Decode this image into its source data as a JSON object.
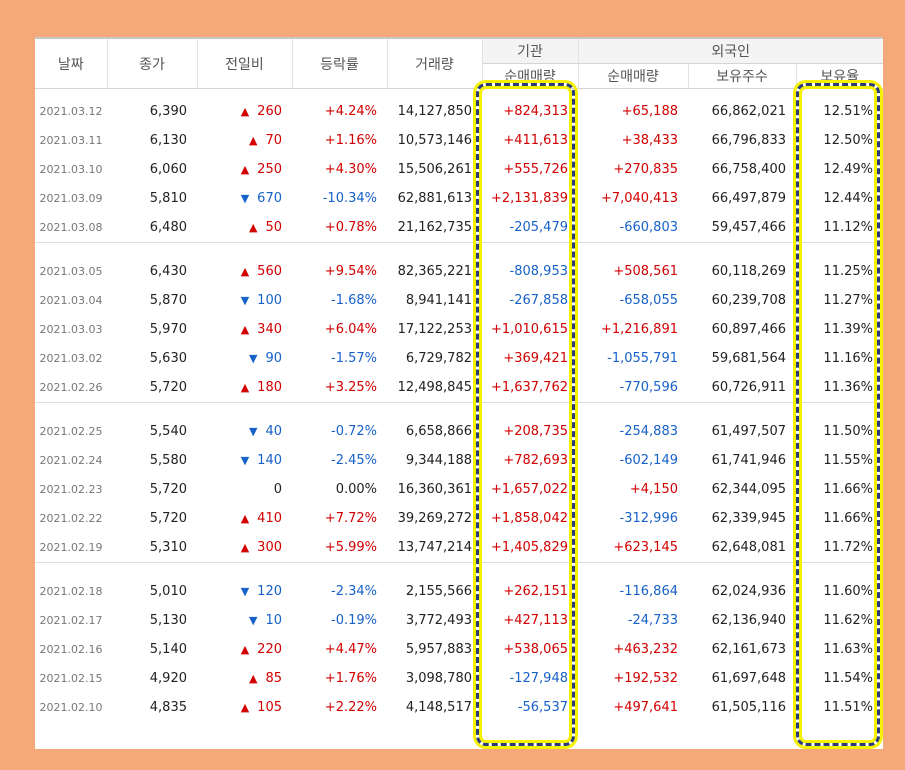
{
  "headers": {
    "date": "날짜",
    "close": "종가",
    "change": "전일비",
    "rate": "등락률",
    "volume": "거래량",
    "institution_group": "기관",
    "institution_net": "순매매량",
    "foreign_group": "외국인",
    "foreign_net": "순매매량",
    "foreign_holdings": "보유주수",
    "foreign_ratio": "보유율"
  },
  "groups": [
    {
      "rows": [
        {
          "date": "2021.03.12",
          "close": "6,390",
          "dir": "up",
          "arrow": "▲",
          "change": "260",
          "rate": "+4.24%",
          "volume": "14,127,850",
          "inst": "+824,313",
          "inst_dir": "up",
          "fnet": "+65,188",
          "fnet_dir": "up",
          "fhold": "66,862,021",
          "fratio": "12.51%"
        },
        {
          "date": "2021.03.11",
          "close": "6,130",
          "dir": "up",
          "arrow": "▲",
          "change": "70",
          "rate": "+1.16%",
          "volume": "10,573,146",
          "inst": "+411,613",
          "inst_dir": "up",
          "fnet": "+38,433",
          "fnet_dir": "up",
          "fhold": "66,796,833",
          "fratio": "12.50%"
        },
        {
          "date": "2021.03.10",
          "close": "6,060",
          "dir": "up",
          "arrow": "▲",
          "change": "250",
          "rate": "+4.30%",
          "volume": "15,506,261",
          "inst": "+555,726",
          "inst_dir": "up",
          "fnet": "+270,835",
          "fnet_dir": "up",
          "fhold": "66,758,400",
          "fratio": "12.49%"
        },
        {
          "date": "2021.03.09",
          "close": "5,810",
          "dir": "down",
          "arrow": "▼",
          "change": "670",
          "rate": "-10.34%",
          "volume": "62,881,613",
          "inst": "+2,131,839",
          "inst_dir": "up",
          "fnet": "+7,040,413",
          "fnet_dir": "up",
          "fhold": "66,497,879",
          "fratio": "12.44%"
        },
        {
          "date": "2021.03.08",
          "close": "6,480",
          "dir": "up",
          "arrow": "▲",
          "change": "50",
          "rate": "+0.78%",
          "volume": "21,162,735",
          "inst": "-205,479",
          "inst_dir": "down",
          "fnet": "-660,803",
          "fnet_dir": "down",
          "fhold": "59,457,466",
          "fratio": "11.12%"
        }
      ]
    },
    {
      "rows": [
        {
          "date": "2021.03.05",
          "close": "6,430",
          "dir": "up",
          "arrow": "▲",
          "change": "560",
          "rate": "+9.54%",
          "volume": "82,365,221",
          "inst": "-808,953",
          "inst_dir": "down",
          "fnet": "+508,561",
          "fnet_dir": "up",
          "fhold": "60,118,269",
          "fratio": "11.25%"
        },
        {
          "date": "2021.03.04",
          "close": "5,870",
          "dir": "down",
          "arrow": "▼",
          "change": "100",
          "rate": "-1.68%",
          "volume": "8,941,141",
          "inst": "-267,858",
          "inst_dir": "down",
          "fnet": "-658,055",
          "fnet_dir": "down",
          "fhold": "60,239,708",
          "fratio": "11.27%"
        },
        {
          "date": "2021.03.03",
          "close": "5,970",
          "dir": "up",
          "arrow": "▲",
          "change": "340",
          "rate": "+6.04%",
          "volume": "17,122,253",
          "inst": "+1,010,615",
          "inst_dir": "up",
          "fnet": "+1,216,891",
          "fnet_dir": "up",
          "fhold": "60,897,466",
          "fratio": "11.39%"
        },
        {
          "date": "2021.03.02",
          "close": "5,630",
          "dir": "down",
          "arrow": "▼",
          "change": "90",
          "rate": "-1.57%",
          "volume": "6,729,782",
          "inst": "+369,421",
          "inst_dir": "up",
          "fnet": "-1,055,791",
          "fnet_dir": "down",
          "fhold": "59,681,564",
          "fratio": "11.16%"
        },
        {
          "date": "2021.02.26",
          "close": "5,720",
          "dir": "up",
          "arrow": "▲",
          "change": "180",
          "rate": "+3.25%",
          "volume": "12,498,845",
          "inst": "+1,637,762",
          "inst_dir": "up",
          "fnet": "-770,596",
          "fnet_dir": "down",
          "fhold": "60,726,911",
          "fratio": "11.36%"
        }
      ]
    },
    {
      "rows": [
        {
          "date": "2021.02.25",
          "close": "5,540",
          "dir": "down",
          "arrow": "▼",
          "change": "40",
          "rate": "-0.72%",
          "volume": "6,658,866",
          "inst": "+208,735",
          "inst_dir": "up",
          "fnet": "-254,883",
          "fnet_dir": "down",
          "fhold": "61,497,507",
          "fratio": "11.50%"
        },
        {
          "date": "2021.02.24",
          "close": "5,580",
          "dir": "down",
          "arrow": "▼",
          "change": "140",
          "rate": "-2.45%",
          "volume": "9,344,188",
          "inst": "+782,693",
          "inst_dir": "up",
          "fnet": "-602,149",
          "fnet_dir": "down",
          "fhold": "61,741,946",
          "fratio": "11.55%"
        },
        {
          "date": "2021.02.23",
          "close": "5,720",
          "dir": "neutral",
          "arrow": "",
          "change": "0",
          "rate": "0.00%",
          "volume": "16,360,361",
          "inst": "+1,657,022",
          "inst_dir": "up",
          "fnet": "+4,150",
          "fnet_dir": "up",
          "fhold": "62,344,095",
          "fratio": "11.66%"
        },
        {
          "date": "2021.02.22",
          "close": "5,720",
          "dir": "up",
          "arrow": "▲",
          "change": "410",
          "rate": "+7.72%",
          "volume": "39,269,272",
          "inst": "+1,858,042",
          "inst_dir": "up",
          "fnet": "-312,996",
          "fnet_dir": "down",
          "fhold": "62,339,945",
          "fratio": "11.66%"
        },
        {
          "date": "2021.02.19",
          "close": "5,310",
          "dir": "up",
          "arrow": "▲",
          "change": "300",
          "rate": "+5.99%",
          "volume": "13,747,214",
          "inst": "+1,405,829",
          "inst_dir": "up",
          "fnet": "+623,145",
          "fnet_dir": "up",
          "fhold": "62,648,081",
          "fratio": "11.72%"
        }
      ]
    },
    {
      "rows": [
        {
          "date": "2021.02.18",
          "close": "5,010",
          "dir": "down",
          "arrow": "▼",
          "change": "120",
          "rate": "-2.34%",
          "volume": "2,155,566",
          "inst": "+262,151",
          "inst_dir": "up",
          "fnet": "-116,864",
          "fnet_dir": "down",
          "fhold": "62,024,936",
          "fratio": "11.60%"
        },
        {
          "date": "2021.02.17",
          "close": "5,130",
          "dir": "down",
          "arrow": "▼",
          "change": "10",
          "rate": "-0.19%",
          "volume": "3,772,493",
          "inst": "+427,113",
          "inst_dir": "up",
          "fnet": "-24,733",
          "fnet_dir": "down",
          "fhold": "62,136,940",
          "fratio": "11.62%"
        },
        {
          "date": "2021.02.16",
          "close": "5,140",
          "dir": "up",
          "arrow": "▲",
          "change": "220",
          "rate": "+4.47%",
          "volume": "5,957,883",
          "inst": "+538,065",
          "inst_dir": "up",
          "fnet": "+463,232",
          "fnet_dir": "up",
          "fhold": "62,161,673",
          "fratio": "11.63%"
        },
        {
          "date": "2021.02.15",
          "close": "4,920",
          "dir": "up",
          "arrow": "▲",
          "change": "85",
          "rate": "+1.76%",
          "volume": "3,098,780",
          "inst": "-127,948",
          "inst_dir": "down",
          "fnet": "+192,532",
          "fnet_dir": "up",
          "fhold": "61,697,648",
          "fratio": "11.54%"
        },
        {
          "date": "2021.02.10",
          "close": "4,835",
          "dir": "up",
          "arrow": "▲",
          "change": "105",
          "rate": "+2.22%",
          "volume": "4,148,517",
          "inst": "-56,537",
          "inst_dir": "down",
          "fnet": "+497,641",
          "fnet_dir": "up",
          "fhold": "61,505,116",
          "fratio": "11.51%"
        }
      ]
    }
  ],
  "colors": {
    "up": "#d20000",
    "down": "#1761c9",
    "background": "#f5a97a",
    "highlight_fill": "#f4f200",
    "highlight_dash": "#2b3b7a"
  }
}
